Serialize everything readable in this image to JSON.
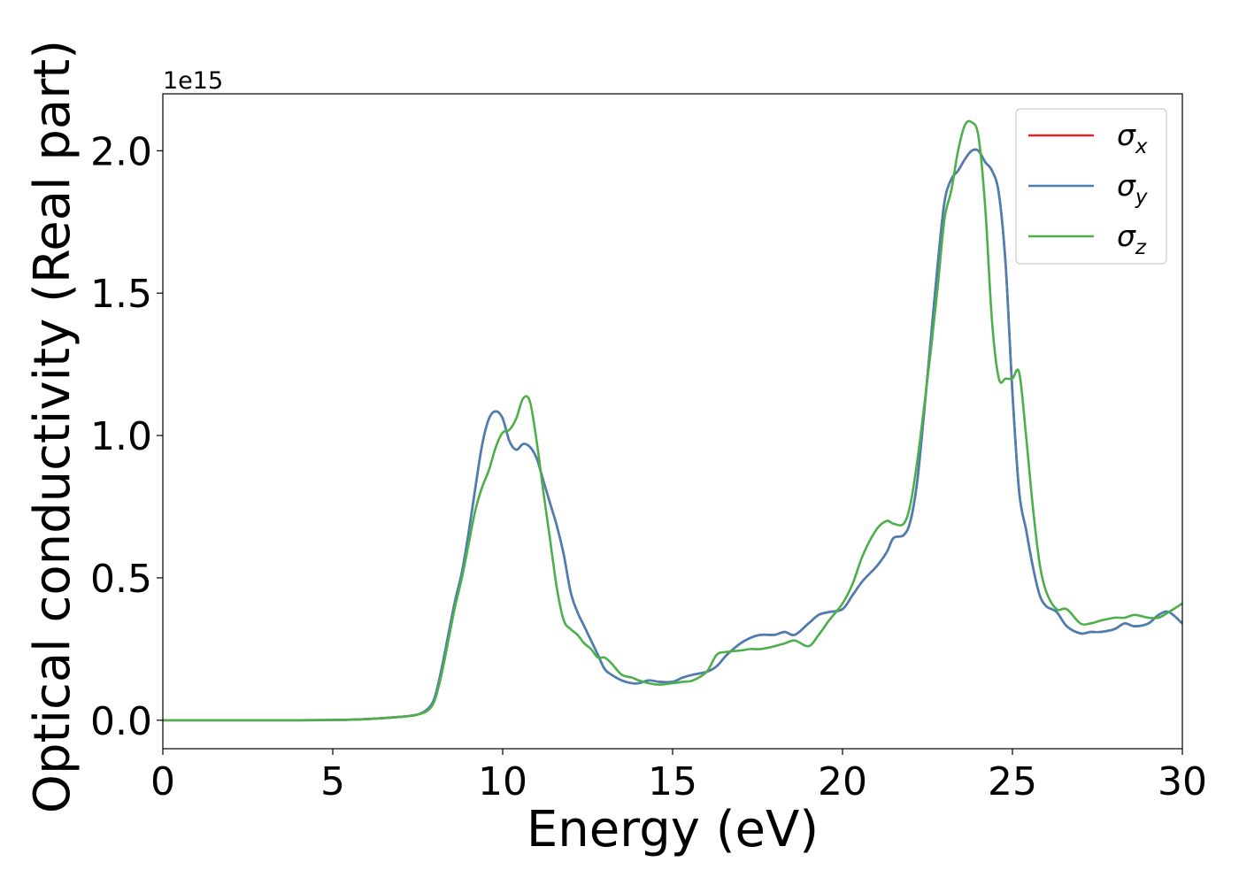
{
  "chart_data": {
    "type": "line",
    "title": "",
    "xlabel": "Energy (eV)",
    "ylabel": "Optical conductivity (Real part)",
    "y_offset_text": "1e15",
    "xlim": [
      0,
      30
    ],
    "ylim": [
      -0.1,
      2.2
    ],
    "x_ticks": [
      0,
      5,
      10,
      15,
      20,
      25,
      30
    ],
    "x_tick_labels": [
      "0",
      "5",
      "10",
      "15",
      "20",
      "25",
      "30"
    ],
    "y_ticks": [
      0.0,
      0.5,
      1.0,
      1.5,
      2.0
    ],
    "y_tick_labels": [
      "0.0",
      "0.5",
      "1.0",
      "1.5",
      "2.0"
    ],
    "grid": false,
    "legend_position": "top-right",
    "series": [
      {
        "name": "σx",
        "legend_base": "σ",
        "legend_sub": "x",
        "color": "#d62728",
        "x": [
          0,
          2,
          4,
          5,
          6,
          7,
          7.5,
          7.8,
          8,
          8.2,
          8.4,
          8.6,
          8.8,
          9,
          9.2,
          9.4,
          9.6,
          9.8,
          10,
          10.2,
          10.4,
          10.6,
          10.8,
          11,
          11.2,
          11.4,
          11.6,
          11.8,
          12,
          12.2,
          12.4,
          12.6,
          12.8,
          13,
          13.2,
          13.5,
          13.8,
          14,
          14.3,
          14.6,
          15,
          15.3,
          15.6,
          16,
          16.3,
          16.6,
          17,
          17.3,
          17.6,
          18,
          18.3,
          18.6,
          19,
          19.3,
          19.6,
          20,
          20.3,
          20.6,
          21,
          21.3,
          21.5,
          21.8,
          22,
          22.2,
          22.4,
          22.6,
          22.8,
          23,
          23.2,
          23.4,
          23.6,
          23.8,
          24,
          24.2,
          24.4,
          24.6,
          24.8,
          25,
          25.2,
          25.4,
          25.6,
          25.8,
          26,
          26.3,
          26.6,
          27,
          27.3,
          27.6,
          28,
          28.3,
          28.6,
          29,
          29.3,
          29.6,
          30
        ],
        "values": [
          0.0,
          0.0,
          0.0,
          0.001,
          0.004,
          0.012,
          0.02,
          0.04,
          0.08,
          0.18,
          0.3,
          0.42,
          0.52,
          0.66,
          0.82,
          0.97,
          1.06,
          1.085,
          1.06,
          0.98,
          0.95,
          0.97,
          0.96,
          0.92,
          0.84,
          0.76,
          0.68,
          0.58,
          0.45,
          0.38,
          0.33,
          0.28,
          0.23,
          0.18,
          0.16,
          0.14,
          0.13,
          0.13,
          0.14,
          0.135,
          0.135,
          0.15,
          0.16,
          0.17,
          0.19,
          0.23,
          0.27,
          0.29,
          0.3,
          0.3,
          0.31,
          0.3,
          0.34,
          0.37,
          0.38,
          0.39,
          0.44,
          0.49,
          0.54,
          0.59,
          0.64,
          0.65,
          0.7,
          0.84,
          1.08,
          1.34,
          1.6,
          1.82,
          1.9,
          1.93,
          1.97,
          2.0,
          2.0,
          1.96,
          1.93,
          1.85,
          1.6,
          1.15,
          0.8,
          0.67,
          0.54,
          0.44,
          0.4,
          0.38,
          0.33,
          0.305,
          0.31,
          0.31,
          0.32,
          0.34,
          0.33,
          0.34,
          0.37,
          0.38,
          0.34
        ]
      },
      {
        "name": "σy",
        "legend_base": "σ",
        "legend_sub": "y",
        "color": "#4a7fb5",
        "x": [
          0,
          2,
          4,
          5,
          6,
          7,
          7.5,
          7.8,
          8,
          8.2,
          8.4,
          8.6,
          8.8,
          9,
          9.2,
          9.4,
          9.6,
          9.8,
          10,
          10.2,
          10.4,
          10.6,
          10.8,
          11,
          11.2,
          11.4,
          11.6,
          11.8,
          12,
          12.2,
          12.4,
          12.6,
          12.8,
          13,
          13.2,
          13.5,
          13.8,
          14,
          14.3,
          14.6,
          15,
          15.3,
          15.6,
          16,
          16.3,
          16.6,
          17,
          17.3,
          17.6,
          18,
          18.3,
          18.6,
          19,
          19.3,
          19.6,
          20,
          20.3,
          20.6,
          21,
          21.3,
          21.5,
          21.8,
          22,
          22.2,
          22.4,
          22.6,
          22.8,
          23,
          23.2,
          23.4,
          23.6,
          23.8,
          24,
          24.2,
          24.4,
          24.6,
          24.8,
          25,
          25.2,
          25.4,
          25.6,
          25.8,
          26,
          26.3,
          26.6,
          27,
          27.3,
          27.6,
          28,
          28.3,
          28.6,
          29,
          29.3,
          29.6,
          30
        ],
        "values": [
          0.0,
          0.0,
          0.0,
          0.001,
          0.004,
          0.012,
          0.02,
          0.04,
          0.08,
          0.18,
          0.3,
          0.42,
          0.52,
          0.66,
          0.82,
          0.97,
          1.06,
          1.085,
          1.06,
          0.98,
          0.95,
          0.97,
          0.96,
          0.92,
          0.84,
          0.76,
          0.68,
          0.58,
          0.45,
          0.38,
          0.33,
          0.28,
          0.23,
          0.18,
          0.16,
          0.14,
          0.13,
          0.13,
          0.14,
          0.135,
          0.135,
          0.15,
          0.16,
          0.17,
          0.19,
          0.23,
          0.27,
          0.29,
          0.3,
          0.3,
          0.31,
          0.3,
          0.34,
          0.37,
          0.38,
          0.39,
          0.44,
          0.49,
          0.54,
          0.59,
          0.64,
          0.65,
          0.7,
          0.84,
          1.08,
          1.34,
          1.6,
          1.82,
          1.9,
          1.93,
          1.97,
          2.0,
          2.0,
          1.96,
          1.93,
          1.85,
          1.6,
          1.15,
          0.8,
          0.67,
          0.54,
          0.44,
          0.4,
          0.38,
          0.33,
          0.305,
          0.31,
          0.31,
          0.32,
          0.34,
          0.33,
          0.34,
          0.37,
          0.38,
          0.34
        ]
      },
      {
        "name": "σz",
        "legend_base": "σ",
        "legend_sub": "z",
        "color": "#4daf4a",
        "x": [
          0,
          2,
          4,
          5,
          6,
          7,
          7.5,
          7.8,
          8,
          8.2,
          8.4,
          8.6,
          8.8,
          9,
          9.2,
          9.4,
          9.6,
          9.8,
          10,
          10.2,
          10.4,
          10.6,
          10.8,
          11,
          11.2,
          11.4,
          11.6,
          11.8,
          12,
          12.2,
          12.4,
          12.6,
          12.8,
          13,
          13.2,
          13.5,
          13.8,
          14,
          14.3,
          14.6,
          15,
          15.3,
          15.6,
          16,
          16.3,
          16.6,
          17,
          17.3,
          17.6,
          18,
          18.3,
          18.6,
          19,
          19.3,
          19.6,
          20,
          20.3,
          20.6,
          21,
          21.3,
          21.5,
          21.8,
          22,
          22.2,
          22.4,
          22.6,
          22.8,
          23,
          23.2,
          23.4,
          23.6,
          23.8,
          24,
          24.2,
          24.4,
          24.6,
          24.8,
          25,
          25.2,
          25.4,
          25.6,
          25.8,
          26,
          26.3,
          26.6,
          27,
          27.3,
          27.6,
          28,
          28.3,
          28.6,
          29,
          29.3,
          29.6,
          30
        ],
        "values": [
          0.0,
          0.0,
          0.0,
          0.001,
          0.004,
          0.012,
          0.02,
          0.035,
          0.07,
          0.16,
          0.28,
          0.4,
          0.5,
          0.62,
          0.74,
          0.82,
          0.88,
          0.96,
          1.01,
          1.02,
          1.06,
          1.13,
          1.12,
          0.98,
          0.8,
          0.63,
          0.46,
          0.35,
          0.32,
          0.3,
          0.27,
          0.25,
          0.22,
          0.22,
          0.2,
          0.16,
          0.15,
          0.14,
          0.13,
          0.125,
          0.13,
          0.135,
          0.14,
          0.17,
          0.23,
          0.24,
          0.245,
          0.25,
          0.25,
          0.26,
          0.27,
          0.28,
          0.26,
          0.3,
          0.35,
          0.41,
          0.48,
          0.58,
          0.67,
          0.7,
          0.69,
          0.69,
          0.76,
          0.91,
          1.1,
          1.3,
          1.52,
          1.76,
          1.86,
          2.0,
          2.09,
          2.1,
          2.05,
          1.8,
          1.4,
          1.2,
          1.2,
          1.2,
          1.22,
          1.0,
          0.75,
          0.55,
          0.45,
          0.39,
          0.39,
          0.34,
          0.34,
          0.35,
          0.36,
          0.36,
          0.37,
          0.36,
          0.36,
          0.38,
          0.41
        ]
      }
    ]
  }
}
